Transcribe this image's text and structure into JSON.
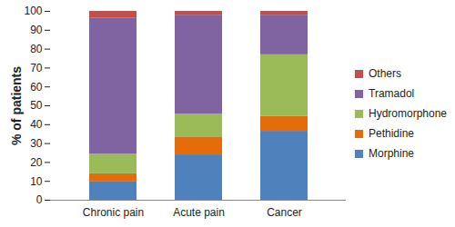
{
  "chart_data": {
    "type": "bar",
    "stacked": true,
    "categories": [
      "Chronic pain",
      "Acute pain",
      "Cancer"
    ],
    "y_label": "% of patients",
    "ylim": [
      0,
      100
    ],
    "yticks": [
      0,
      10,
      20,
      30,
      40,
      50,
      60,
      70,
      80,
      90,
      100
    ],
    "grid": false,
    "legend": "right",
    "series": [
      {
        "name": "Morphine",
        "color": "#4F81BD",
        "values": [
          10,
          24,
          36.5
        ]
      },
      {
        "name": "Pethidine",
        "color": "#E46C0A",
        "values": [
          4,
          9.5,
          8
        ]
      },
      {
        "name": "Hydromorphone",
        "color": "#9BBB59",
        "values": [
          10.5,
          12,
          32.5
        ]
      },
      {
        "name": "Tramadol",
        "color": "#8064A2",
        "values": [
          72,
          52.5,
          21
        ]
      },
      {
        "name": "Others",
        "color": "#C0504D",
        "values": [
          3.5,
          2,
          2
        ]
      }
    ]
  }
}
